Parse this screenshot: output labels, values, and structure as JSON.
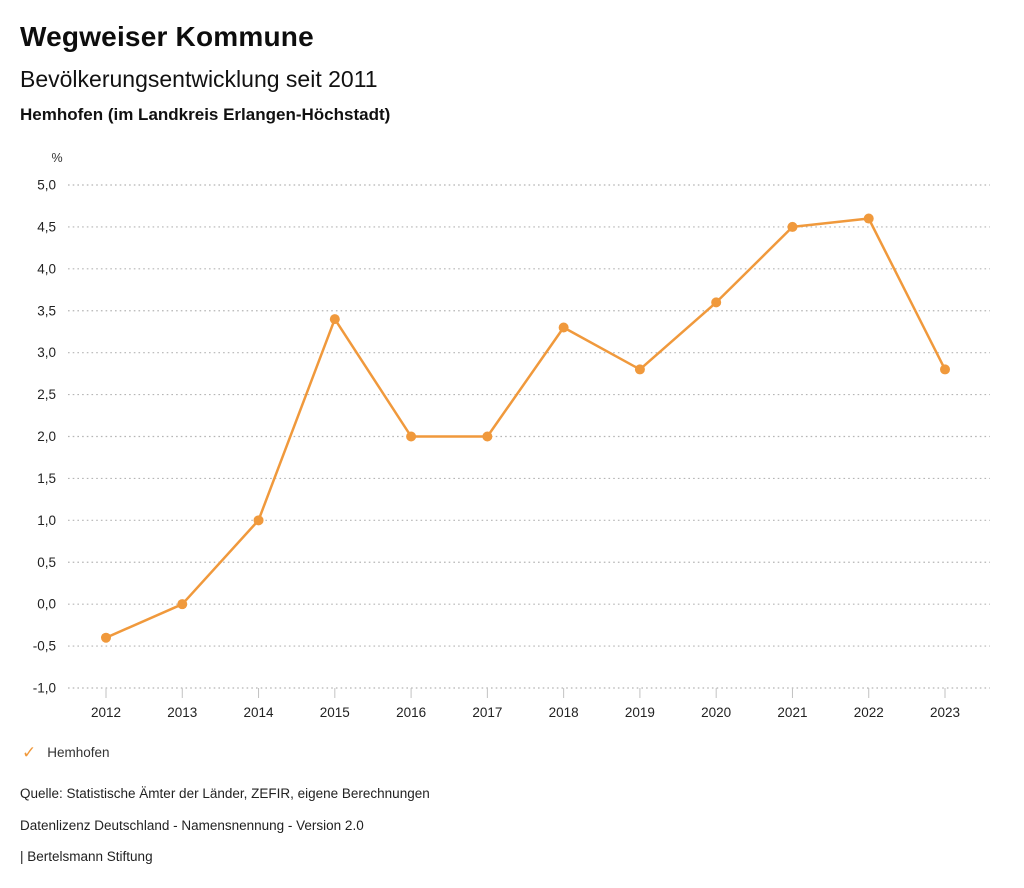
{
  "header": {
    "title": "Wegweiser Kommune",
    "subtitle": "Bevölkerungsentwicklung seit 2011",
    "location": "Hemhofen (im Landkreis Erlangen-Höchstadt)"
  },
  "chart_data": {
    "type": "line",
    "unit_label": "%",
    "x": [
      "2012",
      "2013",
      "2014",
      "2015",
      "2016",
      "2017",
      "2018",
      "2019",
      "2020",
      "2021",
      "2022",
      "2023"
    ],
    "series": [
      {
        "name": "Hemhofen",
        "values": [
          -0.4,
          0.0,
          1.0,
          3.4,
          2.0,
          2.0,
          3.3,
          2.8,
          3.6,
          4.5,
          4.6,
          2.8
        ]
      }
    ],
    "ylim": [
      -1.0,
      5.0
    ],
    "ytick_step": 0.5,
    "ytick_labels": [
      "5,0",
      "4,5",
      "4,0",
      "3,5",
      "3,0",
      "2,5",
      "2,0",
      "1,5",
      "1,0",
      "0,5",
      "0,0",
      "-0,5",
      "-1,0"
    ],
    "grid": "horizontal-dotted",
    "legend_position": "bottom-left",
    "decimal_separator": ","
  },
  "legend": {
    "check_icon": "✓",
    "label": "Hemhofen"
  },
  "footer": {
    "source": "Quelle: Statistische Ämter der Länder, ZEFIR, eigene Berechnungen",
    "license": "Datenlizenz Deutschland - Namensnennung - Version 2.0",
    "attribution": "| Bertelsmann Stiftung"
  },
  "colors": {
    "accent": "#F0993C",
    "grid": "#b5b5b5",
    "tick": "#c2c2c2",
    "axis_text": "#222222",
    "background": "#ffffff"
  }
}
